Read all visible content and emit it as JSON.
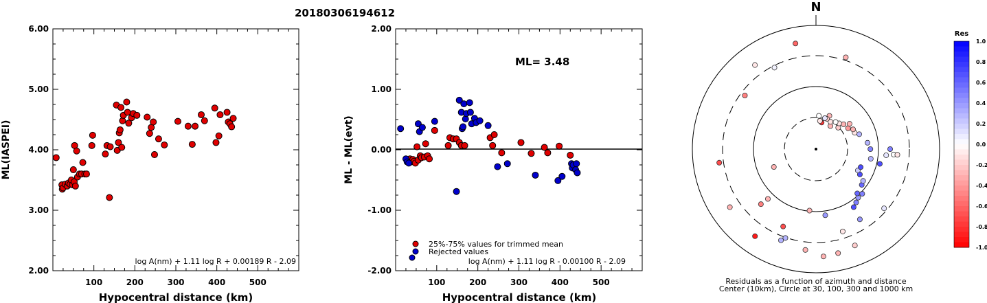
{
  "title": "20180306194612",
  "chart_data": [
    {
      "type": "scatter",
      "ylabel": "ML(IASPEI)",
      "xlabel": "Hypocentral distance (km)",
      "xlim": [
        0,
        600
      ],
      "ylim": [
        2.0,
        6.0
      ],
      "xticks": [
        "100",
        "200",
        "300",
        "400",
        "500"
      ],
      "yticks": [
        "2.00",
        "3.00",
        "4.00",
        "5.00",
        "6.00"
      ],
      "formula": "log A(nm) + 1.11 log R + 0.00189 R - 2.09",
      "marker_color": "#e00000",
      "points": [
        [
          8,
          3.87
        ],
        [
          22,
          3.42
        ],
        [
          23,
          3.35
        ],
        [
          25,
          3.37
        ],
        [
          30,
          3.43
        ],
        [
          35,
          3.4
        ],
        [
          38,
          3.45
        ],
        [
          42,
          3.43
        ],
        [
          45,
          3.5
        ],
        [
          48,
          3.42
        ],
        [
          50,
          3.67
        ],
        [
          52,
          3.47
        ],
        [
          53,
          4.07
        ],
        [
          55,
          3.4
        ],
        [
          58,
          3.98
        ],
        [
          60,
          3.55
        ],
        [
          65,
          3.6
        ],
        [
          70,
          3.6
        ],
        [
          73,
          3.79
        ],
        [
          78,
          3.6
        ],
        [
          82,
          3.6
        ],
        [
          95,
          4.07
        ],
        [
          97,
          4.24
        ],
        [
          128,
          3.93
        ],
        [
          132,
          4.07
        ],
        [
          138,
          3.21
        ],
        [
          140,
          4.05
        ],
        [
          155,
          4.74
        ],
        [
          157,
          3.99
        ],
        [
          160,
          4.12
        ],
        [
          162,
          4.28
        ],
        [
          164,
          4.33
        ],
        [
          166,
          4.7
        ],
        [
          168,
          4.04
        ],
        [
          170,
          4.48
        ],
        [
          172,
          4.57
        ],
        [
          180,
          4.79
        ],
        [
          182,
          4.62
        ],
        [
          185,
          4.44
        ],
        [
          192,
          4.53
        ],
        [
          196,
          4.6
        ],
        [
          205,
          4.57
        ],
        [
          230,
          4.54
        ],
        [
          236,
          4.27
        ],
        [
          240,
          4.37
        ],
        [
          245,
          4.46
        ],
        [
          248,
          3.92
        ],
        [
          258,
          4.18
        ],
        [
          272,
          4.08
        ],
        [
          305,
          4.47
        ],
        [
          330,
          4.39
        ],
        [
          340,
          4.09
        ],
        [
          347,
          4.39
        ],
        [
          362,
          4.58
        ],
        [
          370,
          4.48
        ],
        [
          395,
          4.69
        ],
        [
          398,
          4.12
        ],
        [
          405,
          4.23
        ],
        [
          408,
          4.58
        ],
        [
          425,
          4.62
        ],
        [
          428,
          4.46
        ],
        [
          432,
          4.43
        ],
        [
          436,
          4.38
        ],
        [
          440,
          4.52
        ]
      ]
    },
    {
      "type": "scatter",
      "ylabel": "ML - ML(evt)",
      "xlabel": "Hypocentral distance (km)",
      "xlim": [
        0,
        600
      ],
      "ylim": [
        -2.0,
        2.0
      ],
      "xticks": [
        "100",
        "200",
        "300",
        "400",
        "500"
      ],
      "yticks": [
        "-2.00",
        "-1.00",
        "0.00",
        "1.00",
        "2.00"
      ],
      "annotation": "ML= 3.48",
      "formula": "log A(nm) + 1.11 log R - 0.00100 R - 2.09",
      "legend": [
        "25%-75% values for trimmed mean",
        "Rejected values"
      ],
      "series": [
        {
          "name": "25%-75% values for trimmed mean",
          "color": "#e00000",
          "points": [
            [
              35,
              -0.15
            ],
            [
              38,
              -0.2
            ],
            [
              42,
              -0.16
            ],
            [
              45,
              -0.19
            ],
            [
              48,
              -0.22
            ],
            [
              52,
              0.05
            ],
            [
              55,
              -0.17
            ],
            [
              60,
              -0.1
            ],
            [
              63,
              -0.13
            ],
            [
              70,
              -0.12
            ],
            [
              73,
              0.1
            ],
            [
              78,
              -0.1
            ],
            [
              82,
              -0.15
            ],
            [
              95,
              0.32
            ],
            [
              128,
              0.07
            ],
            [
              132,
              0.2
            ],
            [
              140,
              0.18
            ],
            [
              148,
              0.18
            ],
            [
              155,
              0.12
            ],
            [
              160,
              0.07
            ],
            [
              168,
              0.07
            ],
            [
              230,
              0.2
            ],
            [
              236,
              0.07
            ],
            [
              240,
              0.25
            ],
            [
              258,
              -0.05
            ],
            [
              305,
              0.12
            ],
            [
              330,
              -0.06
            ],
            [
              362,
              0.04
            ],
            [
              370,
              -0.05
            ],
            [
              398,
              0.06
            ],
            [
              425,
              -0.09
            ]
          ]
        },
        {
          "name": "Rejected values",
          "color": "#0000cc",
          "points": [
            [
              12,
              0.35
            ],
            [
              25,
              -0.15
            ],
            [
              28,
              -0.2
            ],
            [
              32,
              -0.22
            ],
            [
              55,
              0.43
            ],
            [
              58,
              0.3
            ],
            [
              65,
              0.37
            ],
            [
              95,
              0.47
            ],
            [
              148,
              -0.69
            ],
            [
              155,
              0.82
            ],
            [
              160,
              0.62
            ],
            [
              162,
              0.35
            ],
            [
              164,
              0.38
            ],
            [
              166,
              0.76
            ],
            [
              170,
              0.51
            ],
            [
              172,
              0.6
            ],
            [
              180,
              0.78
            ],
            [
              182,
              0.62
            ],
            [
              185,
              0.43
            ],
            [
              192,
              0.52
            ],
            [
              196,
              0.45
            ],
            [
              205,
              0.48
            ],
            [
              225,
              0.4
            ],
            [
              248,
              -0.28
            ],
            [
              272,
              -0.23
            ],
            [
              340,
              -0.42
            ],
            [
              395,
              -0.51
            ],
            [
              405,
              -0.44
            ],
            [
              428,
              -0.23
            ],
            [
              430,
              -0.3
            ],
            [
              432,
              -0.25
            ],
            [
              438,
              -0.33
            ],
            [
              440,
              -0.23
            ],
            [
              442,
              -0.38
            ]
          ]
        }
      ]
    },
    {
      "type": "polar-scatter",
      "north_label": "N",
      "caption_line1": "Residuals as a function of azimuth and distance",
      "caption_line2": "Center (10km), Circle at 30, 100, 300 and 1000 km",
      "colorbar_title": "Res",
      "colorbar_ticks": [
        "1.0",
        "0.8",
        "0.6",
        "0.4",
        "0.2",
        "0.0",
        "-0.2",
        "-0.4",
        "-0.6",
        "-0.8",
        "-1.0"
      ],
      "points": [
        {
          "az": 349,
          "r": 0.87,
          "res": -0.6
        },
        {
          "az": 18,
          "r": 0.78,
          "res": -0.3
        },
        {
          "az": 324,
          "r": 0.84,
          "res": -0.1
        },
        {
          "az": 333,
          "r": 0.74,
          "res": 0.05
        },
        {
          "az": 307,
          "r": 0.72,
          "res": -0.5
        },
        {
          "az": 262,
          "r": 0.79,
          "res": -0.7
        },
        {
          "az": 225,
          "r": 0.63,
          "res": -0.5
        },
        {
          "az": 236,
          "r": 0.84,
          "res": -0.3
        },
        {
          "az": 247,
          "r": 0.37,
          "res": -0.3
        },
        {
          "az": 224,
          "r": 0.56,
          "res": -0.3
        },
        {
          "az": 215,
          "r": 0.86,
          "res": -0.9
        },
        {
          "az": 203,
          "r": 0.68,
          "res": -0.7
        },
        {
          "az": 186,
          "r": 0.5,
          "res": -0.3
        },
        {
          "az": 172,
          "r": 0.54,
          "res": 0.4
        },
        {
          "az": 162,
          "r": 0.7,
          "res": -0.1
        },
        {
          "az": 186,
          "r": 0.82,
          "res": -0.3
        },
        {
          "az": 176,
          "r": 0.87,
          "res": -0.3
        },
        {
          "az": 168,
          "r": 0.86,
          "res": -0.3
        },
        {
          "az": 201,
          "r": 0.79,
          "res": 0.3
        },
        {
          "az": 199,
          "r": 0.76,
          "res": 0.3
        },
        {
          "az": 158,
          "r": 0.84,
          "res": -0.2
        },
        {
          "az": 131,
          "r": 0.73,
          "res": 0.1
        },
        {
          "az": 148,
          "r": 0.67,
          "res": 0.4
        },
        {
          "az": 147,
          "r": 0.56,
          "res": 0.7
        },
        {
          "az": 143,
          "r": 0.54,
          "res": 0.5
        },
        {
          "az": 139,
          "r": 0.52,
          "res": 0.4
        },
        {
          "az": 137,
          "r": 0.49,
          "res": 0.6
        },
        {
          "az": 134,
          "r": 0.52,
          "res": 0.5
        },
        {
          "az": 128,
          "r": 0.47,
          "res": 0.6
        },
        {
          "az": 124,
          "r": 0.46,
          "res": 0.3
        },
        {
          "az": 120,
          "r": 0.41,
          "res": 0.7
        },
        {
          "az": 117,
          "r": 0.38,
          "res": 0.2
        },
        {
          "az": 112,
          "r": 0.39,
          "res": 0.7
        },
        {
          "az": 103,
          "r": 0.53,
          "res": 0.7
        },
        {
          "az": 100,
          "r": 0.45,
          "res": 0.3
        },
        {
          "az": 95,
          "r": 0.57,
          "res": 0.1
        },
        {
          "az": 94,
          "r": 0.63,
          "res": 0.0
        },
        {
          "az": 94,
          "r": 0.66,
          "res": -0.1
        },
        {
          "az": 90,
          "r": 0.6,
          "res": 0.5
        },
        {
          "az": 90,
          "r": 0.44,
          "res": 0.5
        },
        {
          "az": 83,
          "r": 0.42,
          "res": 0.3
        },
        {
          "az": 71,
          "r": 0.37,
          "res": 0.3
        },
        {
          "az": 67,
          "r": 0.34,
          "res": -0.1
        },
        {
          "az": 62,
          "r": 0.34,
          "res": -0.3
        },
        {
          "az": 57,
          "r": 0.31,
          "res": -0.4
        },
        {
          "az": 53,
          "r": 0.34,
          "res": -0.3
        },
        {
          "az": 48,
          "r": 0.3,
          "res": -0.3
        },
        {
          "az": 46,
          "r": 0.25,
          "res": -0.2
        },
        {
          "az": 42,
          "r": 0.28,
          "res": -0.1
        },
        {
          "az": 36,
          "r": 0.27,
          "res": 0.0
        },
        {
          "az": 32,
          "r": 0.22,
          "res": -0.3
        },
        {
          "az": 28,
          "r": 0.25,
          "res": -0.1
        },
        {
          "az": 22,
          "r": 0.29,
          "res": -0.3
        },
        {
          "az": 20,
          "r": 0.26,
          "res": -0.2
        },
        {
          "az": 16,
          "r": 0.26,
          "res": 0.1
        },
        {
          "az": 12,
          "r": 0.22,
          "res": -0.8
        },
        {
          "az": 8,
          "r": 0.23,
          "res": -0.1
        },
        {
          "az": 5,
          "r": 0.27,
          "res": 0.0
        }
      ]
    }
  ]
}
